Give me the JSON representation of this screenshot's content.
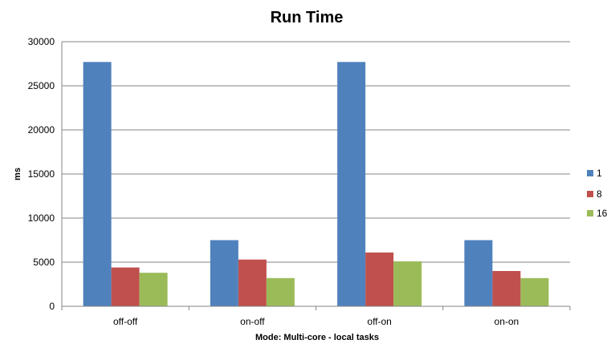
{
  "chart_data": {
    "type": "bar",
    "title": "Run Time",
    "xlabel": "Mode: Multi-core  - local  tasks",
    "ylabel": "ms",
    "categories": [
      "off-off",
      "on-off",
      "off-on",
      "on-on"
    ],
    "series": [
      {
        "name": "1",
        "values": [
          27700,
          7500,
          27700,
          7500
        ],
        "color": "#4f81bd"
      },
      {
        "name": "8",
        "values": [
          4400,
          5300,
          6100,
          4000
        ],
        "color": "#c0504d"
      },
      {
        "name": "16",
        "values": [
          3800,
          3200,
          5100,
          3200
        ],
        "color": "#9bbb59"
      }
    ],
    "ylim": [
      0,
      30000
    ],
    "yticks": [
      "0",
      "5000",
      "10000",
      "15000",
      "20000",
      "25000",
      "30000"
    ],
    "grid": true,
    "legend_position": "right"
  }
}
